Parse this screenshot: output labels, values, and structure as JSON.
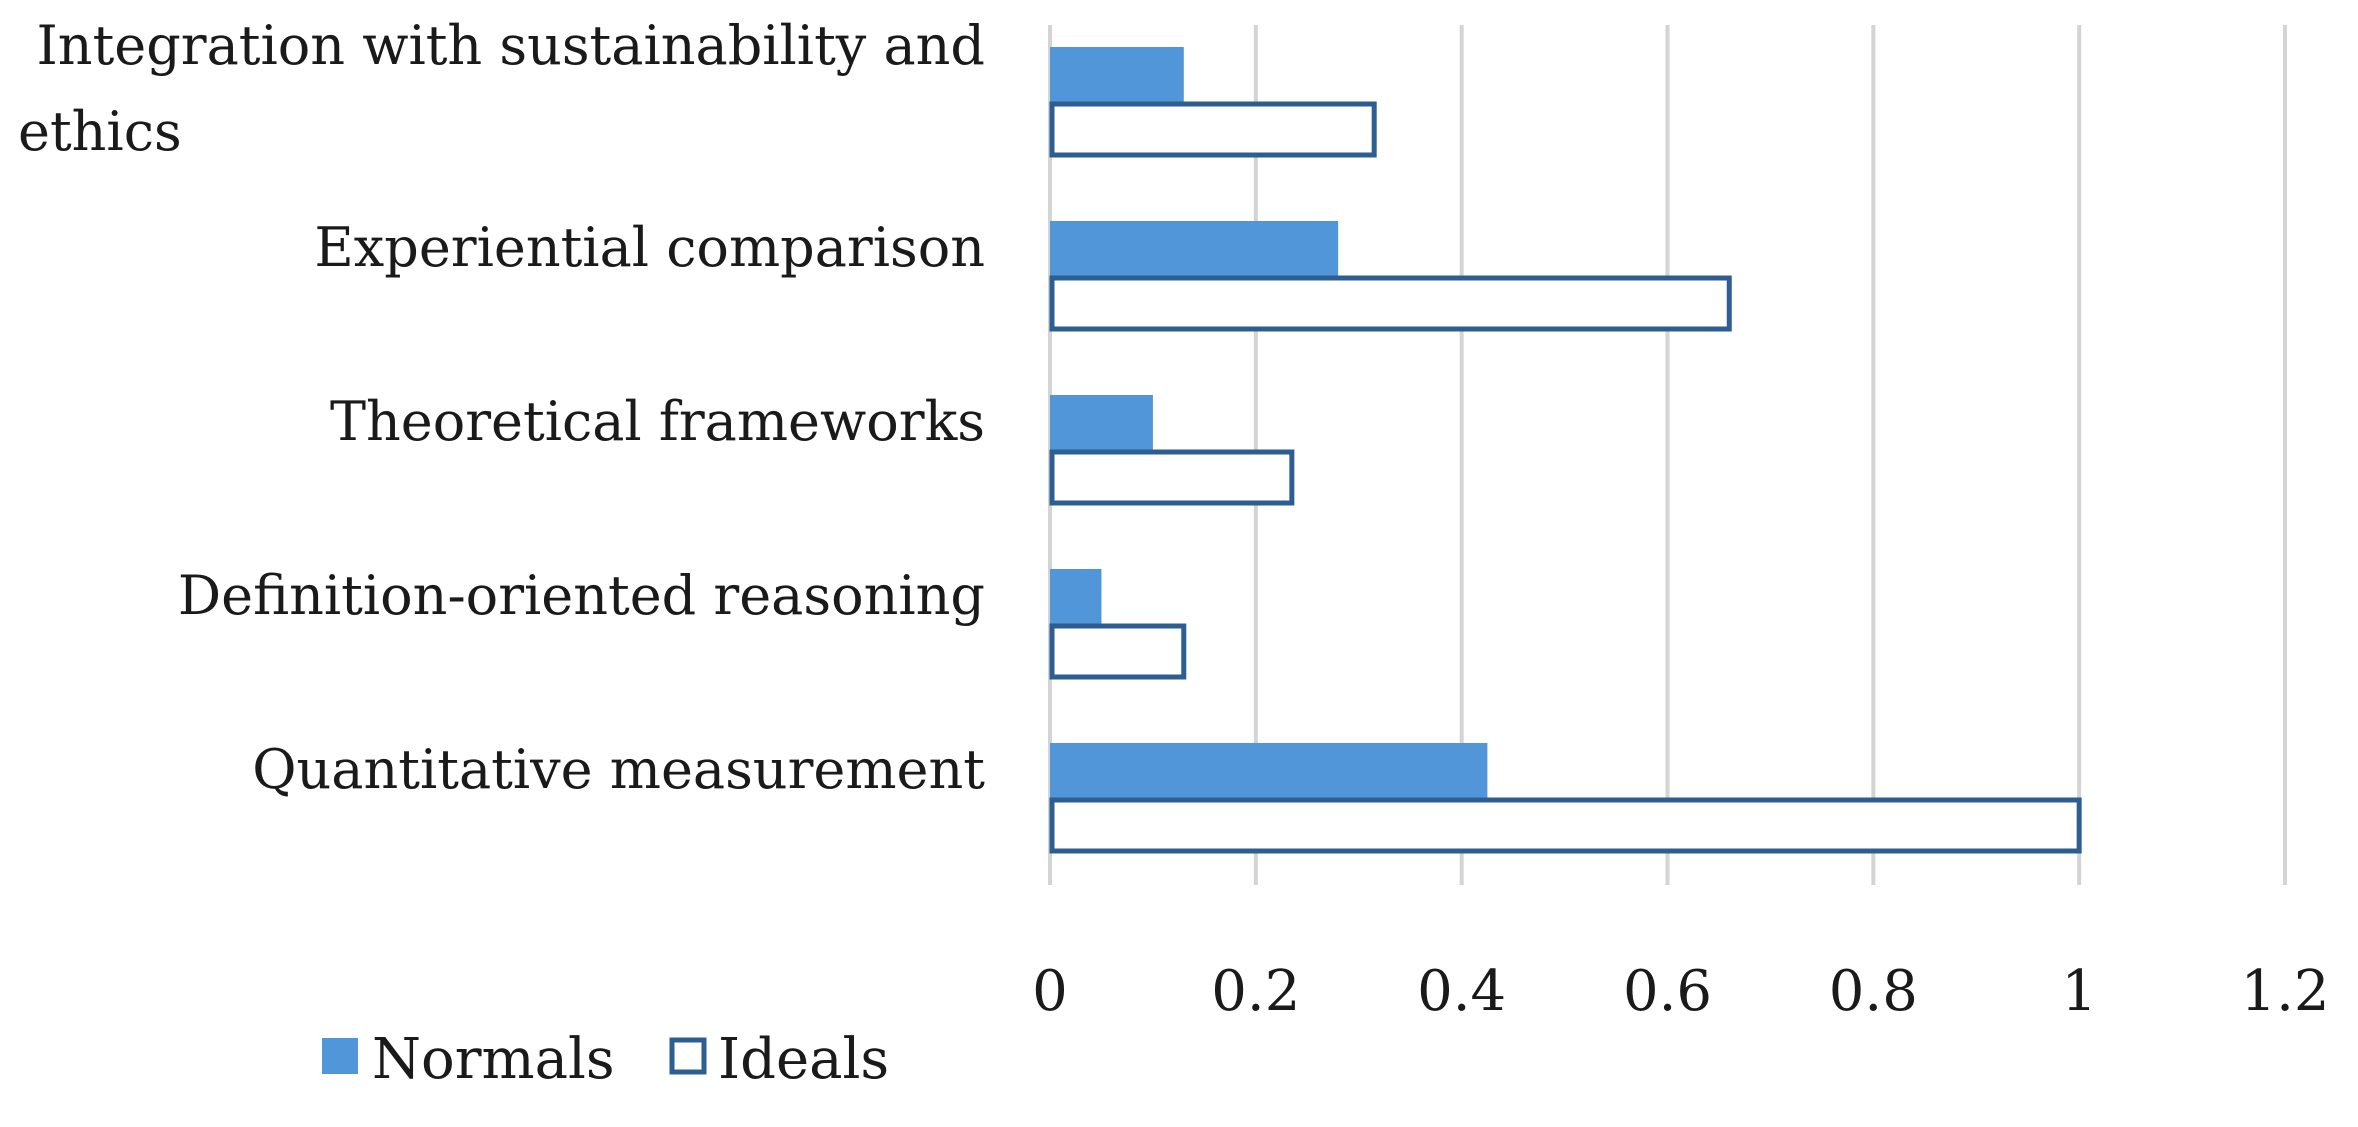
{
  "chart_data": {
    "type": "bar",
    "orientation": "horizontal",
    "categories": [
      "Integration with sustainability and ethics",
      "Experiential comparison",
      "Theoretical frameworks",
      "Definition-oriented reasoning",
      "Quantitative measurement"
    ],
    "category_lines": [
      [
        "Integration with sustainability and",
        "ethics"
      ],
      [
        "Experiential comparison"
      ],
      [
        "Theoretical frameworks"
      ],
      [
        "Definition-oriented reasoning"
      ],
      [
        "Quantitative measurement"
      ]
    ],
    "series": [
      {
        "name": "Normals",
        "values": [
          0.13,
          0.28,
          0.1,
          0.05,
          0.425
        ],
        "color": "#5096d8",
        "style": "filled"
      },
      {
        "name": "Ideals",
        "values": [
          0.315,
          0.66,
          0.235,
          0.13,
          1.0
        ],
        "color": "#2d5e91",
        "style": "outline"
      }
    ],
    "xlim": [
      0,
      1.2
    ],
    "xticks": [
      "0",
      "0.2",
      "0.4",
      "0.6",
      "0.8",
      "1",
      "1.2"
    ],
    "xtick_values": [
      0,
      0.2,
      0.4,
      0.6,
      0.8,
      1.0,
      1.2
    ],
    "title": "",
    "xlabel": "",
    "ylabel": "",
    "grid": "vertical",
    "legend": "bottom-left"
  }
}
